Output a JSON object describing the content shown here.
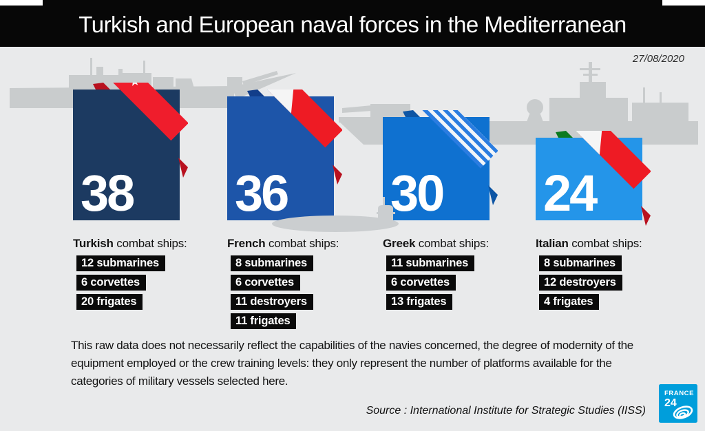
{
  "header": {
    "title": "Turkish and European naval forces in the Mediterranean"
  },
  "date": "27/08/2020",
  "cards": [
    {
      "country": "Turkish",
      "suffix": " combat ships:",
      "count": 38,
      "color": "#1c3a61",
      "items": [
        "12 submarines",
        "6 corvettes",
        "20 frigates"
      ]
    },
    {
      "country": "French",
      "suffix": " combat ships:",
      "count": 36,
      "color": "#1d55a9",
      "items": [
        "8 submarines",
        "6 corvettes",
        "11 destroyers",
        "11 frigates"
      ]
    },
    {
      "country": "Greek",
      "suffix": " combat ships:",
      "count": 30,
      "color": "#0f71d0",
      "items": [
        "11 submarines",
        "6 corvettes",
        "13 frigates"
      ]
    },
    {
      "country": "Italian",
      "suffix": " combat ships:",
      "count": 24,
      "color": "#2495e9",
      "items": [
        "8 submarines",
        "12 destroyers",
        "4 frigates"
      ]
    }
  ],
  "disclaimer": "This raw data does not necessarily reflect the capabilities of the navies concerned, the degree of modernity of the equipment employed or the crew training levels: they only represent the number of platforms available for the categories of military vessels selected here.",
  "source": "Source : International Institute for Strategic Studies (IISS)",
  "logo": {
    "line1": "FRANCE",
    "line2": "24",
    "color": "#009edb"
  },
  "chart_data": {
    "type": "bar",
    "title": "Turkish and European naval forces in the Mediterranean",
    "categories": [
      "Turkish",
      "French",
      "Greek",
      "Italian"
    ],
    "values": [
      38,
      36,
      30,
      24
    ],
    "unit": "combat ships",
    "ylim": [
      0,
      38
    ],
    "bar_colors": [
      "#1c3a61",
      "#1d55a9",
      "#0f71d0",
      "#2495e9"
    ],
    "breakdown": {
      "Turkish": {
        "submarines": 12,
        "corvettes": 6,
        "frigates": 20
      },
      "French": {
        "submarines": 8,
        "corvettes": 6,
        "destroyers": 11,
        "frigates": 11
      },
      "Greek": {
        "submarines": 11,
        "corvettes": 6,
        "frigates": 13
      },
      "Italian": {
        "submarines": 8,
        "destroyers": 12,
        "frigates": 4
      }
    },
    "date": "27/08/2020",
    "source": "International Institute for Strategic Studies (IISS)"
  }
}
